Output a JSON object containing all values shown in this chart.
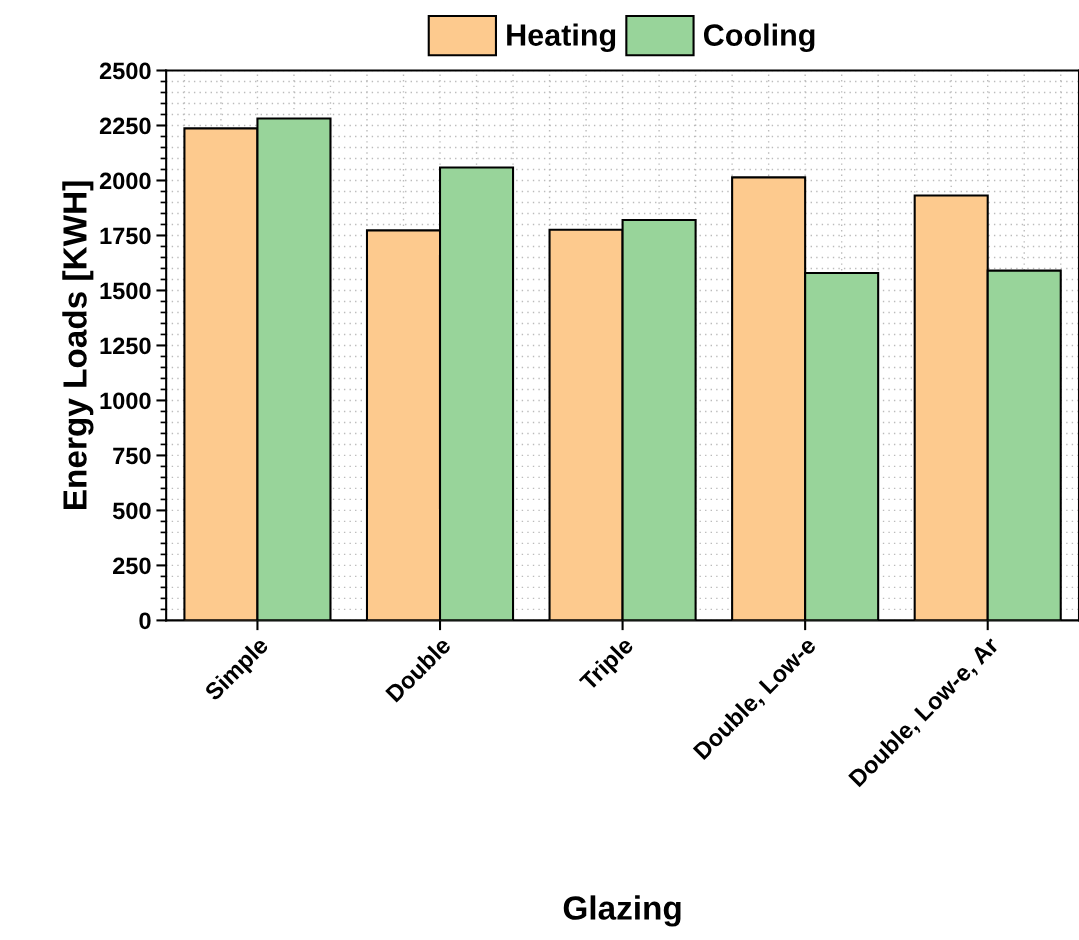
{
  "chart_data": {
    "type": "bar",
    "xlabel": "Glazing",
    "ylabel": "Energy Loads [KWH]",
    "categories": [
      "Simple",
      "Double",
      "Triple",
      "Double, Low-e",
      "Double, Low-e, Ar"
    ],
    "series": [
      {
        "name": "Heating",
        "color": "#fdca8e",
        "values": [
          2237,
          1773,
          1776,
          2014,
          1932
        ]
      },
      {
        "name": "Cooling",
        "color": "#98d49a",
        "values": [
          2282,
          2059,
          1820,
          1579,
          1590
        ]
      }
    ],
    "ylim": [
      0,
      2500
    ],
    "yticks": [
      0,
      250,
      500,
      750,
      1000,
      1250,
      1500,
      1750,
      2000,
      2250,
      2500
    ],
    "grid": true,
    "legend": "top"
  }
}
